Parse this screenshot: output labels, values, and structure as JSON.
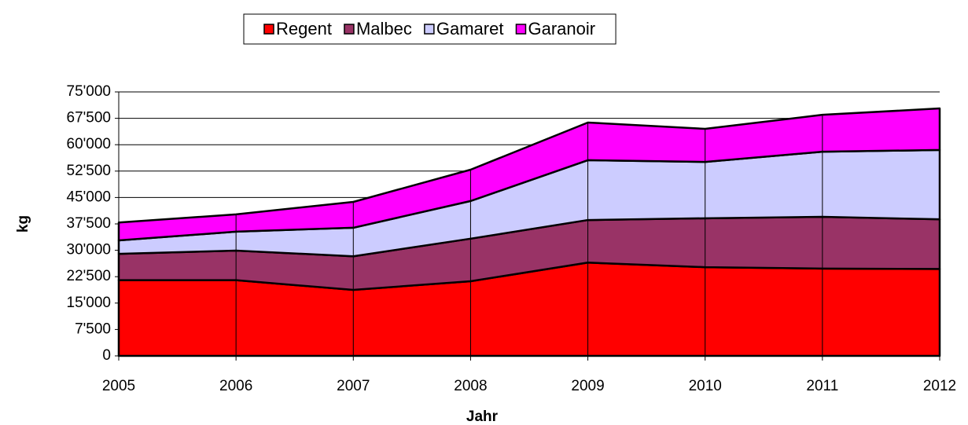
{
  "chart_data": {
    "type": "area",
    "stacked": true,
    "x_label": "Jahr",
    "y_label": "kg",
    "x": [
      2005,
      2006,
      2007,
      2008,
      2009,
      2010,
      2011,
      2012
    ],
    "xlim": [
      2005,
      2012
    ],
    "series": [
      {
        "name": "Regent",
        "color": "#ff0000",
        "values": [
          21500,
          21500,
          18750,
          21200,
          26500,
          25200,
          24800,
          24700
        ]
      },
      {
        "name": "Malbec",
        "color": "#993366",
        "values": [
          7500,
          8400,
          9550,
          12100,
          12100,
          13900,
          14700,
          14100
        ]
      },
      {
        "name": "Gamaret",
        "color": "#ccccff",
        "values": [
          3800,
          5400,
          8100,
          10700,
          17000,
          16000,
          18500,
          19700
        ]
      },
      {
        "name": "Garanoir",
        "color": "#ff00ff",
        "values": [
          5100,
          4900,
          7350,
          8900,
          10700,
          9400,
          10500,
          11800
        ]
      }
    ],
    "ylim": [
      0,
      75000
    ],
    "yticks": [
      0,
      {
        "value": 7500,
        "label": "7'500"
      },
      {
        "value": 15000,
        "label": "15'000"
      },
      {
        "value": 22500,
        "label": "22'500"
      },
      {
        "value": 30000,
        "label": "30'000"
      },
      {
        "value": 37500,
        "label": "37'500"
      },
      {
        "value": 45000,
        "label": "45'000"
      },
      {
        "value": 52500,
        "label": "52'500"
      },
      {
        "value": 60000,
        "label": "60'000"
      },
      {
        "value": 67500,
        "label": "67'500"
      },
      {
        "value": 75000,
        "label": "75'000"
      }
    ],
    "grid": true,
    "legend": "top"
  }
}
